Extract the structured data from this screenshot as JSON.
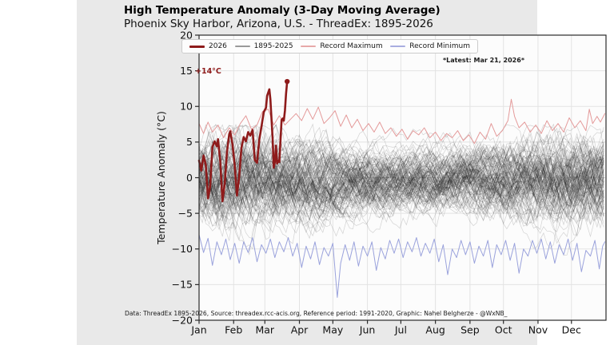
{
  "figure": {
    "title": "High Temperature Anomaly (3-Day Moving Average)",
    "subtitle": "Phoenix Sky Harbor, Arizona, U.S. - ThreadEx: 1895-2026",
    "latest_note": "*Latest: Mar 21, 2026*",
    "peak_annotation": "+14°C",
    "source_note": "Data: ThreadEx 1895-2026, Source: threadex.rcc-acis.org, Reference period: 1991-2020, Graphic: Nahel Belgherze - @WxNB_"
  },
  "legend": {
    "items": [
      {
        "label": "2026",
        "color": "#8e1b1b",
        "thickness": 3
      },
      {
        "label": "1895-2025",
        "color": "#9a9a9a",
        "thickness": 1.4
      },
      {
        "label": "Record Maximum",
        "color": "#e7a8a8",
        "thickness": 1.4
      },
      {
        "label": "Record Minimum",
        "color": "#a8ade0",
        "thickness": 1.4
      }
    ]
  },
  "axes": {
    "ylabel": "Temperature Anomaly (°C)",
    "yticks": [
      20,
      15,
      10,
      5,
      0,
      -5,
      -10,
      -15,
      -20
    ],
    "ylim": [
      -20,
      20
    ],
    "xlim_days": [
      0,
      365
    ],
    "month_labels": [
      "Jan",
      "Feb",
      "Mar",
      "Apr",
      "May",
      "Jun",
      "Jul",
      "Aug",
      "Sep",
      "Oct",
      "Nov",
      "Dec"
    ],
    "month_start_days": [
      0,
      31,
      59,
      90,
      120,
      151,
      181,
      212,
      243,
      273,
      304,
      334
    ],
    "grid": true
  },
  "colors": {
    "line_2026": "#8e1b1b",
    "record_max": "#e49a9a",
    "record_min": "#9aa2dc",
    "historical": "rgba(25,25,25,0.18)",
    "grid": "#e3e3e3",
    "plot_bg": "#fcfcfc",
    "figure_bg": "#e9e9e9",
    "axis": "#2a2a2a",
    "tick_text": "#111111"
  },
  "chart_data": {
    "type": "line",
    "title": "High Temperature Anomaly (3-Day Moving Average)",
    "x_unit": "day_of_year_from_Jan1",
    "ylabel": "Temperature Anomaly (°C)",
    "ylim": [
      -20,
      20
    ],
    "legend_position": "top-center-inside",
    "series": [
      {
        "name": "2026",
        "color": "#8e1b1b",
        "ends_at": "Mar 21, 2026",
        "end_value_label": "+14°C",
        "points": [
          [
            0,
            2.4
          ],
          [
            2,
            1.0
          ],
          [
            4,
            3.1
          ],
          [
            6,
            1.8
          ],
          [
            8,
            -2.9
          ],
          [
            10,
            -1.2
          ],
          [
            12,
            4.3
          ],
          [
            14,
            5.1
          ],
          [
            16,
            4.4
          ],
          [
            17,
            5.4
          ],
          [
            19,
            2.3
          ],
          [
            21,
            -3.3
          ],
          [
            23,
            -0.8
          ],
          [
            25,
            3.6
          ],
          [
            27,
            6.1
          ],
          [
            28,
            6.5
          ],
          [
            30,
            4.7
          ],
          [
            32,
            1.7
          ],
          [
            34,
            -2.5
          ],
          [
            36,
            0.2
          ],
          [
            38,
            4.2
          ],
          [
            40,
            5.7
          ],
          [
            42,
            5.1
          ],
          [
            44,
            6.4
          ],
          [
            46,
            5.9
          ],
          [
            48,
            6.7
          ],
          [
            50,
            2.5
          ],
          [
            52,
            2.1
          ],
          [
            54,
            5.3
          ],
          [
            56,
            7.2
          ],
          [
            58,
            9.2
          ],
          [
            60,
            9.8
          ],
          [
            61,
            11.5
          ],
          [
            63,
            12.4
          ],
          [
            64,
            11.0
          ],
          [
            66,
            5.5
          ],
          [
            67,
            1.4
          ],
          [
            68,
            2.2
          ],
          [
            69,
            4.5
          ],
          [
            70,
            2.0
          ],
          [
            71,
            2.4
          ],
          [
            72,
            2.2
          ],
          [
            74,
            8.1
          ],
          [
            75,
            8.3
          ],
          [
            76,
            8.0
          ],
          [
            77,
            9.4
          ],
          [
            78,
            11.8
          ],
          [
            79,
            13.5
          ]
        ]
      },
      {
        "name": "Record Maximum",
        "color": "#e49a9a",
        "points": [
          [
            0,
            7.6
          ],
          [
            4,
            6.2
          ],
          [
            8,
            7.8
          ],
          [
            12,
            6.4
          ],
          [
            17,
            7.4
          ],
          [
            22,
            5.6
          ],
          [
            27,
            7.0
          ],
          [
            32,
            6.0
          ],
          [
            37,
            7.6
          ],
          [
            42,
            8.7
          ],
          [
            47,
            6.8
          ],
          [
            52,
            7.4
          ],
          [
            57,
            9.3
          ],
          [
            62,
            9.6
          ],
          [
            67,
            7.4
          ],
          [
            72,
            8.7
          ],
          [
            77,
            7.4
          ],
          [
            82,
            8.2
          ],
          [
            87,
            9.0
          ],
          [
            92,
            8.0
          ],
          [
            97,
            9.7
          ],
          [
            102,
            8.2
          ],
          [
            107,
            9.9
          ],
          [
            112,
            7.6
          ],
          [
            117,
            8.4
          ],
          [
            122,
            9.4
          ],
          [
            127,
            7.2
          ],
          [
            132,
            8.8
          ],
          [
            137,
            7.0
          ],
          [
            142,
            8.2
          ],
          [
            147,
            6.6
          ],
          [
            152,
            7.6
          ],
          [
            157,
            6.4
          ],
          [
            162,
            7.8
          ],
          [
            167,
            6.2
          ],
          [
            172,
            7.0
          ],
          [
            177,
            5.8
          ],
          [
            182,
            6.8
          ],
          [
            187,
            5.4
          ],
          [
            192,
            6.6
          ],
          [
            197,
            6.0
          ],
          [
            202,
            7.0
          ],
          [
            207,
            5.6
          ],
          [
            212,
            6.4
          ],
          [
            217,
            5.2
          ],
          [
            222,
            6.2
          ],
          [
            227,
            5.6
          ],
          [
            232,
            6.6
          ],
          [
            237,
            5.2
          ],
          [
            242,
            6.0
          ],
          [
            247,
            4.8
          ],
          [
            252,
            6.4
          ],
          [
            257,
            5.4
          ],
          [
            262,
            7.6
          ],
          [
            267,
            5.8
          ],
          [
            272,
            6.6
          ],
          [
            277,
            8.0
          ],
          [
            280,
            11.0
          ],
          [
            283,
            8.6
          ],
          [
            287,
            7.0
          ],
          [
            292,
            7.8
          ],
          [
            297,
            6.4
          ],
          [
            302,
            7.4
          ],
          [
            307,
            6.2
          ],
          [
            312,
            8.0
          ],
          [
            317,
            6.6
          ],
          [
            322,
            7.6
          ],
          [
            327,
            6.4
          ],
          [
            332,
            8.4
          ],
          [
            337,
            7.0
          ],
          [
            342,
            8.0
          ],
          [
            347,
            6.6
          ],
          [
            350,
            9.6
          ],
          [
            353,
            7.6
          ],
          [
            357,
            8.6
          ],
          [
            360,
            7.8
          ],
          [
            364,
            9.0
          ]
        ]
      },
      {
        "name": "Record Minimum",
        "color": "#9aa2dc",
        "points": [
          [
            0,
            -8.0
          ],
          [
            4,
            -10.5
          ],
          [
            8,
            -8.5
          ],
          [
            12,
            -12.3
          ],
          [
            16,
            -9.0
          ],
          [
            20,
            -10.8
          ],
          [
            24,
            -8.6
          ],
          [
            28,
            -11.5
          ],
          [
            32,
            -9.2
          ],
          [
            36,
            -12.0
          ],
          [
            40,
            -9.0
          ],
          [
            44,
            -10.5
          ],
          [
            48,
            -8.4
          ],
          [
            52,
            -11.8
          ],
          [
            56,
            -9.4
          ],
          [
            60,
            -10.6
          ],
          [
            64,
            -8.6
          ],
          [
            68,
            -11.2
          ],
          [
            72,
            -9.0
          ],
          [
            76,
            -10.4
          ],
          [
            80,
            -8.4
          ],
          [
            84,
            -11.0
          ],
          [
            88,
            -9.2
          ],
          [
            92,
            -12.6
          ],
          [
            96,
            -9.6
          ],
          [
            100,
            -11.4
          ],
          [
            104,
            -9.0
          ],
          [
            108,
            -12.2
          ],
          [
            112,
            -9.8
          ],
          [
            116,
            -11.0
          ],
          [
            120,
            -9.2
          ],
          [
            124,
            -16.8
          ],
          [
            127,
            -12.0
          ],
          [
            131,
            -9.4
          ],
          [
            135,
            -11.6
          ],
          [
            139,
            -9.0
          ],
          [
            143,
            -12.4
          ],
          [
            147,
            -9.6
          ],
          [
            151,
            -11.0
          ],
          [
            155,
            -9.0
          ],
          [
            159,
            -13.0
          ],
          [
            163,
            -9.8
          ],
          [
            167,
            -11.4
          ],
          [
            171,
            -8.8
          ],
          [
            175,
            -10.6
          ],
          [
            179,
            -8.6
          ],
          [
            183,
            -11.2
          ],
          [
            187,
            -9.0
          ],
          [
            191,
            -10.4
          ],
          [
            195,
            -8.4
          ],
          [
            199,
            -11.0
          ],
          [
            203,
            -9.2
          ],
          [
            207,
            -10.6
          ],
          [
            211,
            -8.6
          ],
          [
            215,
            -11.8
          ],
          [
            219,
            -9.4
          ],
          [
            223,
            -13.6
          ],
          [
            227,
            -10.0
          ],
          [
            231,
            -11.2
          ],
          [
            235,
            -8.8
          ],
          [
            239,
            -10.8
          ],
          [
            243,
            -9.0
          ],
          [
            247,
            -12.0
          ],
          [
            251,
            -9.6
          ],
          [
            255,
            -11.0
          ],
          [
            259,
            -8.8
          ],
          [
            263,
            -12.6
          ],
          [
            267,
            -9.4
          ],
          [
            271,
            -10.8
          ],
          [
            275,
            -8.8
          ],
          [
            279,
            -11.6
          ],
          [
            283,
            -9.2
          ],
          [
            287,
            -13.4
          ],
          [
            291,
            -10.0
          ],
          [
            295,
            -11.0
          ],
          [
            299,
            -8.8
          ],
          [
            303,
            -10.6
          ],
          [
            307,
            -8.6
          ],
          [
            311,
            -11.4
          ],
          [
            315,
            -9.0
          ],
          [
            319,
            -12.0
          ],
          [
            323,
            -9.4
          ],
          [
            327,
            -10.8
          ],
          [
            331,
            -8.6
          ],
          [
            335,
            -11.6
          ],
          [
            339,
            -9.2
          ],
          [
            343,
            -13.2
          ],
          [
            347,
            -10.2
          ],
          [
            351,
            -11.0
          ],
          [
            355,
            -8.8
          ],
          [
            359,
            -12.8
          ],
          [
            362,
            -9.6
          ],
          [
            364,
            -9.0
          ]
        ]
      }
    ],
    "historical_ensemble": {
      "name": "1895-2025",
      "n_years": 131,
      "style": "dense translucent dark-gray spaghetti",
      "approx_value_range": [
        -11,
        7.5
      ],
      "seed": 42
    }
  }
}
